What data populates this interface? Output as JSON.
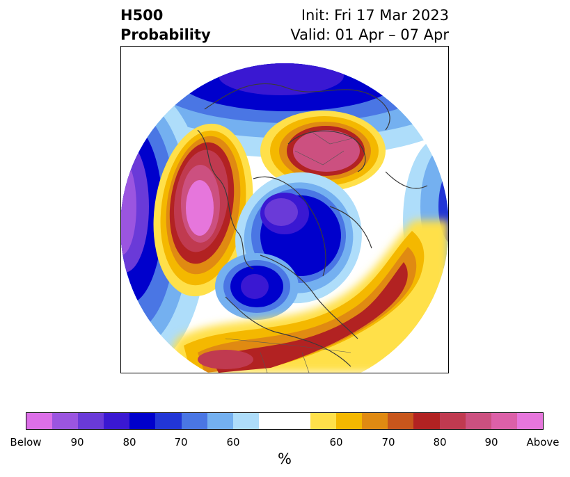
{
  "title": {
    "left_line1": "H500",
    "left_line2": "Probability",
    "right_line1": "Init: Fri 17 Mar 2023",
    "right_line2": "Valid: 01 Apr – 07 Apr"
  },
  "colorbar": {
    "colors": [
      "#dc6fe8",
      "#9b55e0",
      "#6a3ad8",
      "#3a18d2",
      "#0000cc",
      "#2236d6",
      "#4a76e4",
      "#74b0f0",
      "#aeddfa",
      "#ffffff",
      "#ffffff",
      "#ffe04a",
      "#f4b800",
      "#e08a12",
      "#c8561c",
      "#b22222",
      "#c03a50",
      "#cc5080",
      "#dc60a8",
      "#e676dc"
    ],
    "tick_labels": [
      "Below",
      "90",
      "80",
      "70",
      "60",
      "60",
      "70",
      "80",
      "90",
      "Above"
    ],
    "unit_label": "%"
  },
  "map": {
    "projection": "north-polar-stereographic",
    "variable": "500 hPa height probability",
    "colors": {
      "above_high": "#e676dc",
      "above_mid": "#b22222",
      "above_low": "#f4b800",
      "below_low": "#74b0f0",
      "below_mid": "#0000cc",
      "below_high": "#6a3ad8",
      "coast": "#3a3a3a"
    }
  }
}
